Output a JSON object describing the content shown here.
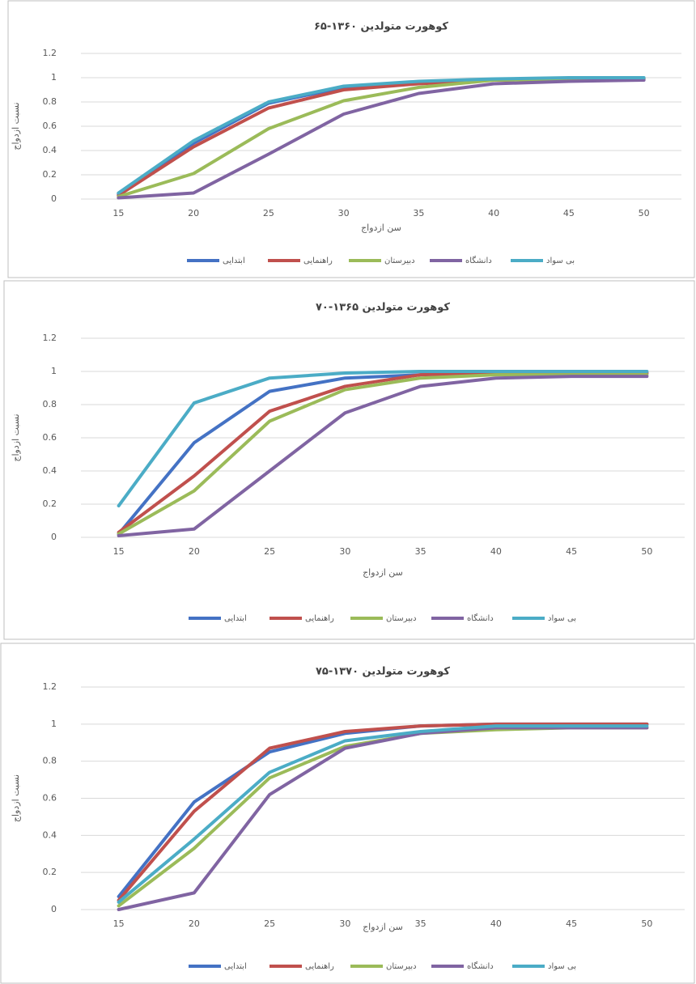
{
  "chart_data": [
    {
      "type": "line",
      "title": "کوهورت متولدین ۱۳۶۰-۶۵",
      "x_label": "سن ازدواج",
      "y_label": "نسبت ازدواج",
      "categories": [
        15,
        20,
        25,
        30,
        35,
        40,
        45,
        50
      ],
      "ylim": [
        0,
        1.2
      ],
      "yticks": [
        0,
        0.2,
        0.4,
        0.6,
        0.8,
        1,
        1.2
      ],
      "grid": true,
      "legend": "bottom",
      "series": [
        {
          "name": "ابتدایی",
          "color": "#4472c4",
          "values": [
            0.04,
            0.46,
            0.79,
            0.92,
            0.96,
            0.98,
            0.99,
            0.99
          ]
        },
        {
          "name": "راهنمایی",
          "color": "#c0504d",
          "values": [
            0.03,
            0.43,
            0.75,
            0.9,
            0.95,
            0.98,
            0.99,
            0.99
          ]
        },
        {
          "name": "دبیرستان",
          "color": "#9bbb59",
          "values": [
            0.02,
            0.21,
            0.58,
            0.81,
            0.92,
            0.98,
            0.99,
            0.99
          ]
        },
        {
          "name": "دانشگاه",
          "color": "#8064a2",
          "values": [
            0.01,
            0.05,
            0.37,
            0.7,
            0.87,
            0.95,
            0.97,
            0.98
          ]
        },
        {
          "name": "بی سواد",
          "color": "#4bacc6",
          "values": [
            0.05,
            0.48,
            0.8,
            0.93,
            0.97,
            0.99,
            1,
            1
          ]
        }
      ]
    },
    {
      "type": "line",
      "title": "کوهورت متولدین ۱۳۶۵-۷۰",
      "x_label": "سن ازدواج",
      "y_label": "نسبت ازدواج",
      "categories": [
        15,
        20,
        25,
        30,
        35,
        40,
        45,
        50
      ],
      "ylim": [
        0,
        1.2
      ],
      "yticks": [
        0,
        0.2,
        0.4,
        0.6,
        0.8,
        1,
        1.2
      ],
      "grid": true,
      "legend": "bottom",
      "series": [
        {
          "name": "ابتدایی",
          "color": "#4472c4",
          "values": [
            0.02,
            0.57,
            0.88,
            0.96,
            0.98,
            0.99,
            0.99,
            0.99
          ]
        },
        {
          "name": "راهنمایی",
          "color": "#c0504d",
          "values": [
            0.03,
            0.37,
            0.76,
            0.91,
            0.98,
            0.99,
            0.99,
            0.99
          ]
        },
        {
          "name": "دبیرستان",
          "color": "#9bbb59",
          "values": [
            0.02,
            0.28,
            0.7,
            0.89,
            0.96,
            0.98,
            0.98,
            0.98
          ]
        },
        {
          "name": "دانشگاه",
          "color": "#8064a2",
          "values": [
            0.01,
            0.05,
            0.4,
            0.75,
            0.91,
            0.96,
            0.97,
            0.97
          ]
        },
        {
          "name": "بی سواد",
          "color": "#4bacc6",
          "values": [
            0.19,
            0.81,
            0.96,
            0.99,
            1,
            1,
            1,
            1
          ]
        }
      ]
    },
    {
      "type": "line",
      "title": "کوهورت متولدین ۱۳۷۰-۷۵",
      "x_label": "سن ازدواج",
      "y_label": "نسبت ازدواج",
      "categories": [
        15,
        20,
        25,
        30,
        35,
        40,
        45,
        50
      ],
      "ylim": [
        0,
        1.2
      ],
      "yticks": [
        0,
        0.2,
        0.4,
        0.6,
        0.8,
        1,
        1.2
      ],
      "grid": true,
      "legend": "bottom",
      "series": [
        {
          "name": "ابتدایی",
          "color": "#4472c4",
          "values": [
            0.07,
            0.58,
            0.85,
            0.95,
            0.99,
            1,
            1,
            1
          ]
        },
        {
          "name": "راهنمایی",
          "color": "#c0504d",
          "values": [
            0.05,
            0.53,
            0.87,
            0.96,
            0.99,
            1,
            1,
            1
          ]
        },
        {
          "name": "دبیرستان",
          "color": "#9bbb59",
          "values": [
            0.02,
            0.33,
            0.71,
            0.88,
            0.95,
            0.97,
            0.98,
            0.98
          ]
        },
        {
          "name": "دانشگاه",
          "color": "#8064a2",
          "values": [
            0,
            0.09,
            0.62,
            0.87,
            0.95,
            0.98,
            0.98,
            0.98
          ]
        },
        {
          "name": "بی سواد",
          "color": "#4bacc6",
          "values": [
            0.04,
            0.38,
            0.74,
            0.91,
            0.96,
            0.99,
            0.99,
            0.99
          ]
        }
      ]
    }
  ]
}
